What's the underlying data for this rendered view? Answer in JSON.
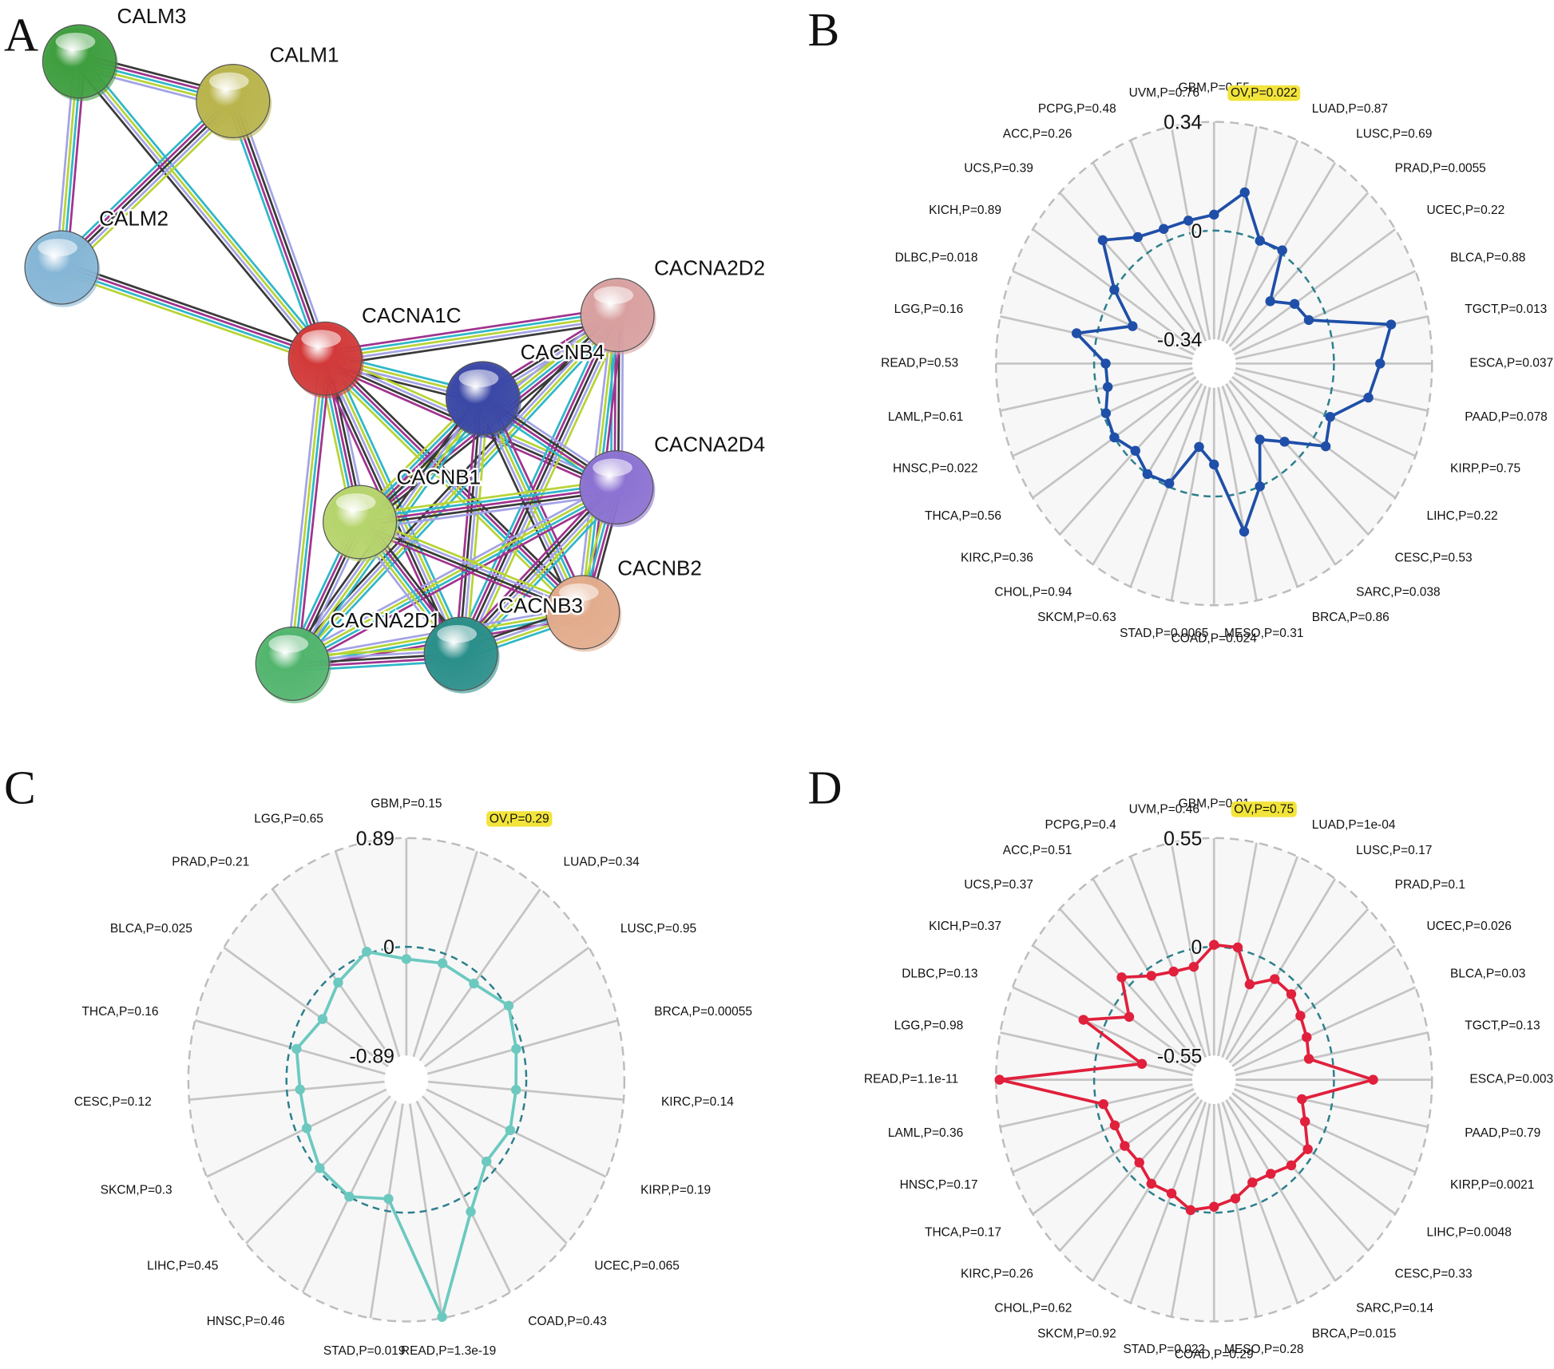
{
  "network": {
    "panel": "A",
    "nodes": [
      "CALM3",
      "CALM1",
      "CALM2",
      "CACNA1C",
      "CACNA2D2",
      "CACNB4",
      "CACNA2D4",
      "CACNB1",
      "CACNB2",
      "CACNA2D1",
      "CACNB3"
    ]
  },
  "chart_data": [
    {
      "type": "radar",
      "panel": "B",
      "categories": [
        "GBM,P=0.55",
        "OV,P=0.022",
        "LUAD,P=0.87",
        "LUSC,P=0.69",
        "PRAD,P=0.0055",
        "UCEC,P=0.22",
        "BLCA,P=0.88",
        "TGCT,P=0.013",
        "ESCA,P=0.037",
        "PAAD,P=0.078",
        "KIRP,P=0.75",
        "LIHC,P=0.22",
        "CESC,P=0.53",
        "SARC,P=0.038",
        "BRCA,P=0.86",
        "MESO,P=0.31",
        "COAD,P=0.024",
        "STAD,P=0.0065",
        "SKCM,P=0.63",
        "CHOL,P=0.94",
        "KIRC,P=0.36",
        "THCA,P=0.56",
        "HNSC,P=0.022",
        "LAML,P=0.61",
        "READ,P=0.53",
        "LGG,P=0.16",
        "DLBC,P=0.018",
        "KICH,P=0.89",
        "UCS,P=0.39",
        "ACC,P=0.26",
        "PCPG,P=0.48",
        "UVM,P=0.76"
      ],
      "series": [
        {
          "color": "#1f4fa8",
          "values": [
            0.05,
            0.13,
            0.0,
            0.01,
            -0.14,
            -0.08,
            -0.06,
            0.21,
            0.16,
            0.13,
            0.02,
            0.05,
            -0.07,
            -0.13,
            0.0,
            0.12,
            -0.1,
            -0.15,
            -0.01,
            0.0,
            -0.03,
            0.0,
            -0.01,
            -0.04,
            -0.04,
            0.07,
            -0.11,
            0.0,
            0.13,
            0.06,
            0.04,
            0.04
          ]
        }
      ],
      "ylim": [
        -0.34,
        0.34
      ],
      "yticks": [
        0.34,
        0,
        -0.34
      ],
      "grid": true,
      "highlight_index": 1,
      "highlight_color": "#f2e43a"
    },
    {
      "type": "radar",
      "panel": "C",
      "categories": [
        "GBM,P=0.15",
        "OV,P=0.29",
        "LUAD,P=0.34",
        "LUSC,P=0.95",
        "BRCA,P=0.00055",
        "KIRC,P=0.14",
        "KIRP,P=0.19",
        "UCEC,P=0.065",
        "COAD,P=0.43",
        "READ,P=1.3e-19",
        "STAD,P=0.019",
        "HNSC,P=0.46",
        "LIHC,P=0.45",
        "SKCM,P=0.3",
        "CESC,P=0.12",
        "THCA,P=0.16",
        "BLCA,P=0.025",
        "PRAD,P=0.21",
        "LGG,P=0.65"
      ],
      "series": [
        {
          "color": "#6cc9c0",
          "values": [
            -0.1,
            -0.08,
            -0.09,
            0.02,
            -0.06,
            -0.09,
            -0.06,
            -0.1,
            0.14,
            0.88,
            -0.1,
            0.0,
            -0.02,
            -0.1,
            -0.12,
            -0.06,
            -0.18,
            -0.08,
            0.02
          ]
        }
      ],
      "ylim": [
        -0.89,
        0.89
      ],
      "yticks": [
        0.89,
        0,
        -0.89
      ],
      "grid": true,
      "highlight_index": 1,
      "highlight_color": "#f2e43a"
    },
    {
      "type": "radar",
      "panel": "D",
      "categories": [
        "GBM,P=0.81",
        "OV,P=0.75",
        "LUAD,P=1e-04",
        "LUSC,P=0.17",
        "PRAD,P=0.1",
        "UCEC,P=0.026",
        "BLCA,P=0.03",
        "TGCT,P=0.13",
        "ESCA,P=0.0035",
        "PAAD,P=0.79",
        "KIRP,P=0.0021",
        "LIHC,P=0.0048",
        "CESC,P=0.33",
        "SARC,P=0.14",
        "BRCA,P=0.015",
        "MESO,P=0.28",
        "COAD,P=0.29",
        "STAD,P=0.022",
        "SKCM,P=0.92",
        "CHOL,P=0.62",
        "KIRC,P=0.26",
        "THCA,P=0.17",
        "HNSC,P=0.17",
        "LAML,P=0.36",
        "READ,P=1.1e-11",
        "LGG,P=0.98",
        "DLBC,P=0.13",
        "KICH,P=0.37",
        "UCS,P=0.37",
        "ACC,P=0.51",
        "PCPG,P=0.4",
        "UVM,P=0.46"
      ],
      "series": [
        {
          "color": "#e0203c",
          "values": [
            0.01,
            0.01,
            -0.15,
            -0.06,
            -0.06,
            -0.09,
            -0.11,
            -0.13,
            0.22,
            -0.17,
            -0.12,
            -0.04,
            -0.06,
            -0.1,
            -0.11,
            -0.06,
            -0.03,
            0.0,
            -0.05,
            -0.04,
            -0.08,
            -0.07,
            -0.07,
            -0.04,
            0.53,
            -0.26,
            0.12,
            -0.1,
            0.06,
            -0.04,
            -0.08,
            -0.09
          ]
        }
      ],
      "ylim": [
        -0.55,
        0.55
      ],
      "yticks": [
        0.55,
        0,
        -0.55
      ],
      "grid": true,
      "highlight_index": 1,
      "highlight_color": "#f2e43a"
    }
  ]
}
